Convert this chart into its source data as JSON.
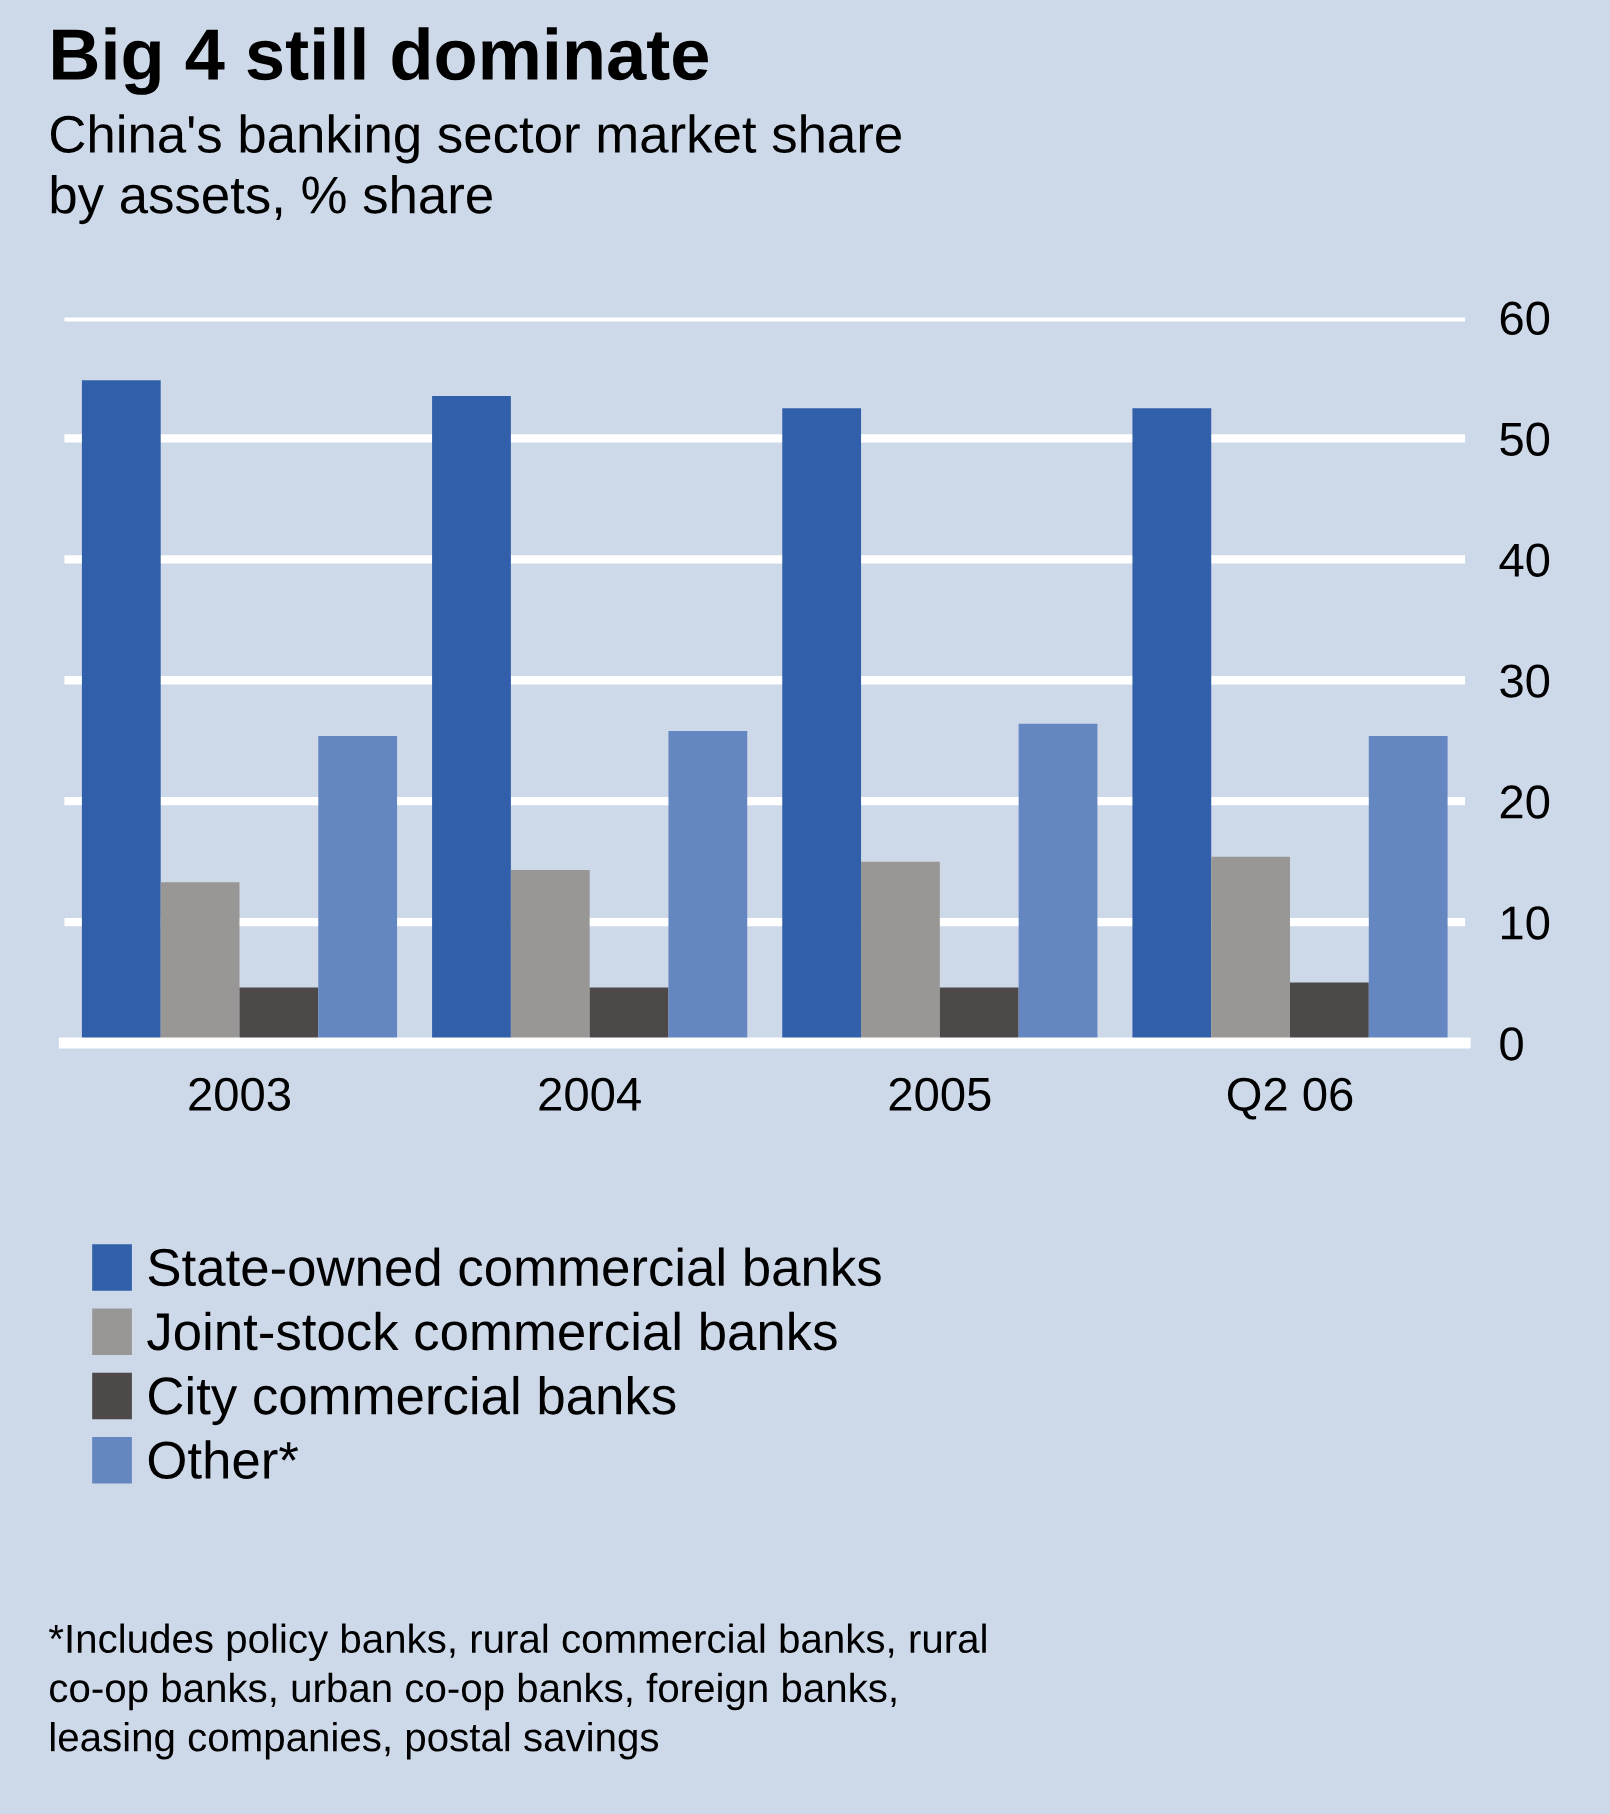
{
  "chart_data": {
    "type": "bar",
    "title": "Big 4 still dominate",
    "subtitle": "China's banking sector market share\nby assets, % share",
    "categories": [
      "2003",
      "2004",
      "2005",
      "Q2 06"
    ],
    "series": [
      {
        "name": "State-owned commercial banks",
        "color": "#315fa9",
        "values": [
          54.8,
          53.5,
          52.5,
          52.5
        ]
      },
      {
        "name": "Joint-stock commercial banks",
        "color": "#989795",
        "values": [
          13.3,
          14.3,
          15.0,
          15.4
        ]
      },
      {
        "name": "City commercial banks",
        "color": "#4d4948",
        "values": [
          4.6,
          4.6,
          4.6,
          5.0
        ]
      },
      {
        "name": "Other*",
        "color": "#6487c1",
        "values": [
          25.4,
          25.8,
          26.4,
          25.4
        ]
      }
    ],
    "ylim": [
      0,
      60
    ],
    "yticks": [
      0,
      10,
      20,
      30,
      40,
      50,
      60
    ],
    "grid": "y",
    "legend": "bottom",
    "annotations": [
      "*Includes policy banks, rural commercial banks, rural\nco-op banks, urban co-op banks, foreign banks,\nleasing companies, postal savings"
    ]
  }
}
